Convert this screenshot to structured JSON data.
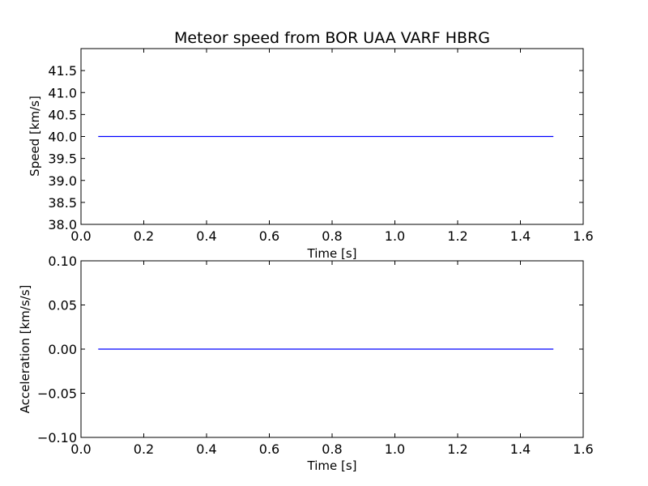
{
  "chart_data": [
    {
      "type": "line",
      "title": "Meteor speed from  BOR UAA VARF HBRG",
      "xlabel": "Time [s]",
      "ylabel": "Speed [km/s]",
      "xlim": [
        0.0,
        1.6
      ],
      "ylim": [
        38.0,
        42.0
      ],
      "xticks": [
        "0.0",
        "0.2",
        "0.4",
        "0.6",
        "0.8",
        "1.0",
        "1.2",
        "1.4",
        "1.6"
      ],
      "yticks": [
        "38.0",
        "38.5",
        "39.0",
        "39.5",
        "40.0",
        "40.5",
        "41.0",
        "41.5"
      ],
      "grid": false,
      "color": "#0000ff",
      "series": [
        {
          "x": [
            0.055,
            1.505
          ],
          "y": [
            40.0,
            40.0
          ]
        }
      ]
    },
    {
      "type": "line",
      "title": "",
      "xlabel": "Time [s]",
      "ylabel": "Acceleration [km/s/s]",
      "xlim": [
        0.0,
        1.6
      ],
      "ylim": [
        -0.1,
        0.1
      ],
      "xticks": [
        "0.0",
        "0.2",
        "0.4",
        "0.6",
        "0.8",
        "1.0",
        "1.2",
        "1.4",
        "1.6"
      ],
      "yticks": [
        "−0.10",
        "−0.05",
        "0.00",
        "0.05",
        "0.10"
      ],
      "grid": false,
      "color": "#0000ff",
      "series": [
        {
          "x": [
            0.055,
            1.505
          ],
          "y": [
            0.0,
            0.0
          ]
        }
      ]
    }
  ]
}
